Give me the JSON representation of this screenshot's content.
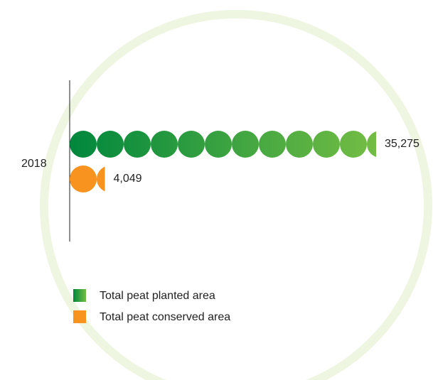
{
  "chart_data": {
    "type": "pictorial-bar",
    "categories": [
      "2018"
    ],
    "series": [
      {
        "name": "Total peat planted area",
        "colors": [
          "#00873d",
          "#74bd44"
        ],
        "values": [
          35275
        ],
        "value_labels": [
          "35,275"
        ]
      },
      {
        "name": "Total peat conserved area",
        "colors": [
          "#f7931e",
          "#f7931e"
        ],
        "values": [
          4049
        ],
        "value_labels": [
          "4,049"
        ]
      }
    ]
  }
}
